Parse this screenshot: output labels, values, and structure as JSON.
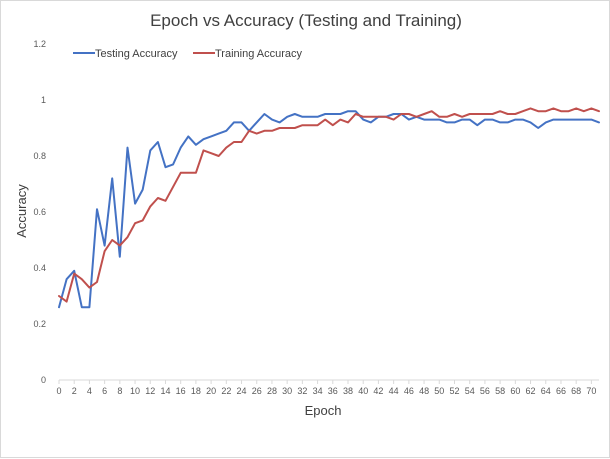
{
  "chart_data": {
    "type": "line",
    "title": "Epoch vs Accuracy (Testing and Training)",
    "xlabel": "Epoch",
    "ylabel": "Accuracy",
    "xlim": [
      0,
      71
    ],
    "ylim": [
      0,
      1.2
    ],
    "y_ticks": [
      "0",
      "0.2",
      "0.4",
      "0.6",
      "0.8",
      "1",
      "1.2"
    ],
    "x_ticks": [
      "0",
      "2",
      "4",
      "6",
      "8",
      "10",
      "12",
      "14",
      "16",
      "18",
      "20",
      "22",
      "24",
      "26",
      "28",
      "30",
      "32",
      "34",
      "36",
      "38",
      "40",
      "42",
      "44",
      "46",
      "48",
      "50",
      "52",
      "54",
      "56",
      "58",
      "60",
      "62",
      "64",
      "66",
      "68",
      "70"
    ],
    "grid": false,
    "legend_position": "top-left",
    "series": [
      {
        "name": "Testing Accuracy",
        "color": "#4472c4",
        "x": [
          0,
          1,
          2,
          3,
          4,
          5,
          6,
          7,
          8,
          9,
          10,
          11,
          12,
          13,
          14,
          15,
          16,
          17,
          18,
          19,
          20,
          21,
          22,
          23,
          24,
          25,
          26,
          27,
          28,
          29,
          30,
          31,
          32,
          33,
          34,
          35,
          36,
          37,
          38,
          39,
          40,
          41,
          42,
          43,
          44,
          45,
          46,
          47,
          48,
          49,
          50,
          51,
          52,
          53,
          54,
          55,
          56,
          57,
          58,
          59,
          60,
          61,
          62,
          63,
          64,
          65,
          66,
          67,
          68,
          69,
          70,
          71
        ],
        "values": [
          0.26,
          0.36,
          0.39,
          0.26,
          0.26,
          0.61,
          0.48,
          0.72,
          0.44,
          0.83,
          0.63,
          0.68,
          0.82,
          0.85,
          0.76,
          0.77,
          0.83,
          0.87,
          0.84,
          0.86,
          0.87,
          0.88,
          0.89,
          0.92,
          0.92,
          0.89,
          0.92,
          0.95,
          0.93,
          0.92,
          0.94,
          0.95,
          0.94,
          0.94,
          0.94,
          0.95,
          0.95,
          0.95,
          0.96,
          0.96,
          0.93,
          0.92,
          0.94,
          0.94,
          0.95,
          0.95,
          0.93,
          0.94,
          0.93,
          0.93,
          0.93,
          0.92,
          0.92,
          0.93,
          0.93,
          0.91,
          0.93,
          0.93,
          0.92,
          0.92,
          0.93,
          0.93,
          0.92,
          0.9,
          0.92,
          0.93,
          0.93,
          0.93,
          0.93,
          0.93,
          0.93,
          0.92
        ]
      },
      {
        "name": "Training Accuracy",
        "color": "#c0504d",
        "x": [
          0,
          1,
          2,
          3,
          4,
          5,
          6,
          7,
          8,
          9,
          10,
          11,
          12,
          13,
          14,
          15,
          16,
          17,
          18,
          19,
          20,
          21,
          22,
          23,
          24,
          25,
          26,
          27,
          28,
          29,
          30,
          31,
          32,
          33,
          34,
          35,
          36,
          37,
          38,
          39,
          40,
          41,
          42,
          43,
          44,
          45,
          46,
          47,
          48,
          49,
          50,
          51,
          52,
          53,
          54,
          55,
          56,
          57,
          58,
          59,
          60,
          61,
          62,
          63,
          64,
          65,
          66,
          67,
          68,
          69,
          70,
          71
        ],
        "values": [
          0.3,
          0.28,
          0.38,
          0.36,
          0.33,
          0.35,
          0.46,
          0.5,
          0.48,
          0.51,
          0.56,
          0.57,
          0.62,
          0.65,
          0.64,
          0.69,
          0.74,
          0.74,
          0.74,
          0.82,
          0.81,
          0.8,
          0.83,
          0.85,
          0.85,
          0.89,
          0.88,
          0.89,
          0.89,
          0.9,
          0.9,
          0.9,
          0.91,
          0.91,
          0.91,
          0.93,
          0.91,
          0.93,
          0.92,
          0.95,
          0.94,
          0.94,
          0.94,
          0.94,
          0.93,
          0.95,
          0.95,
          0.94,
          0.95,
          0.96,
          0.94,
          0.94,
          0.95,
          0.94,
          0.95,
          0.95,
          0.95,
          0.95,
          0.96,
          0.95,
          0.95,
          0.96,
          0.97,
          0.96,
          0.96,
          0.97,
          0.96,
          0.96,
          0.97,
          0.96,
          0.97,
          0.96
        ]
      }
    ]
  }
}
